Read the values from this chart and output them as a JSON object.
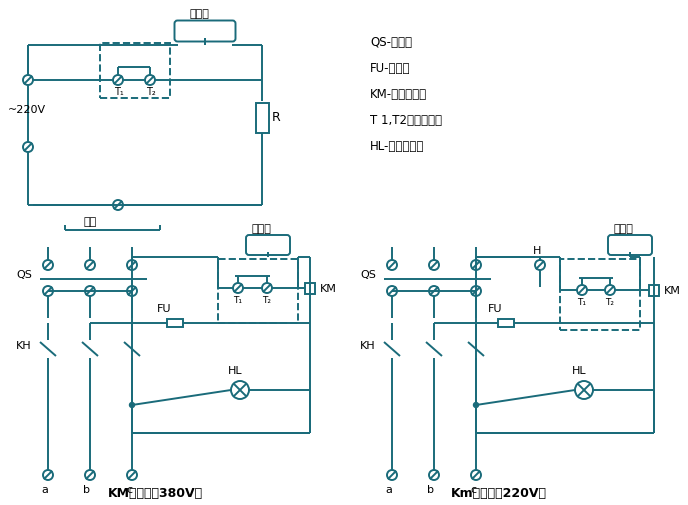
{
  "line_color": "#1a6b7a",
  "bg_color": "#ffffff",
  "legend_items": [
    "QS-断路器",
    "FU-熔断器",
    "KM-交流接触器",
    "T 1,T2温控器触点",
    "HL-通电指示灯"
  ],
  "label_bottom_left": "KM线圈电压380V时",
  "label_bottom_right": "Km线圈电压220V时"
}
